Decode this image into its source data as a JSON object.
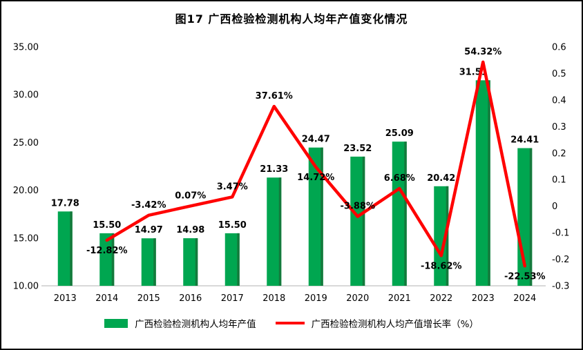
{
  "title": "图17  广西检验检测机构人均年产值变化情况",
  "chart_data": {
    "type": "bar+line",
    "categories": [
      "2013",
      "2014",
      "2015",
      "2016",
      "2017",
      "2018",
      "2019",
      "2020",
      "2021",
      "2022",
      "2023",
      "2024"
    ],
    "series": [
      {
        "name": "广西检验检测机构人均年产值",
        "type": "bar",
        "axis": "left",
        "color": "#00A650",
        "edge_color": "#147A3C",
        "values": [
          17.78,
          15.5,
          14.97,
          14.98,
          15.5,
          21.33,
          24.47,
          23.52,
          25.09,
          20.42,
          31.51,
          24.41
        ],
        "labels": [
          "17.78",
          "15.50",
          "14.97",
          "14.98",
          "15.50",
          "21.33",
          "24.47",
          "23.52",
          "25.09",
          "20.42",
          "31.51",
          "24.41"
        ]
      },
      {
        "name": "广西检验检测机构人均产值增长率（%）",
        "type": "line",
        "axis": "right",
        "color": "#FF0000",
        "start_index": 1,
        "values": [
          -0.1282,
          -0.0342,
          0.0007,
          0.0347,
          0.3761,
          0.1472,
          -0.0388,
          0.0668,
          -0.1862,
          0.5432,
          -0.2253
        ],
        "labels": [
          "-12.82%",
          "-3.42%",
          "0.07%",
          "3.47%",
          "37.61%",
          "14.72%",
          "-3.88%",
          "6.68%",
          "-18.62%",
          "54.32%",
          "-22.53%"
        ],
        "label_positions": [
          "below",
          "above",
          "above",
          "above",
          "above",
          "below",
          "above",
          "above",
          "below",
          "above",
          "below"
        ]
      }
    ],
    "left_axis": {
      "min": 10,
      "max": 35,
      "ticks": [
        "10.00",
        "15.00",
        "20.00",
        "25.00",
        "30.00",
        "35.00"
      ]
    },
    "right_axis": {
      "min": -0.3,
      "max": 0.6,
      "ticks": [
        "-0.3",
        "-0.2",
        "-0.1",
        "0",
        "0.1",
        "0.2",
        "0.3",
        "0.4",
        "0.5",
        "0.6"
      ]
    },
    "bar_label_dx": {
      "10": -14
    },
    "grid": false,
    "legend_position": "bottom"
  }
}
